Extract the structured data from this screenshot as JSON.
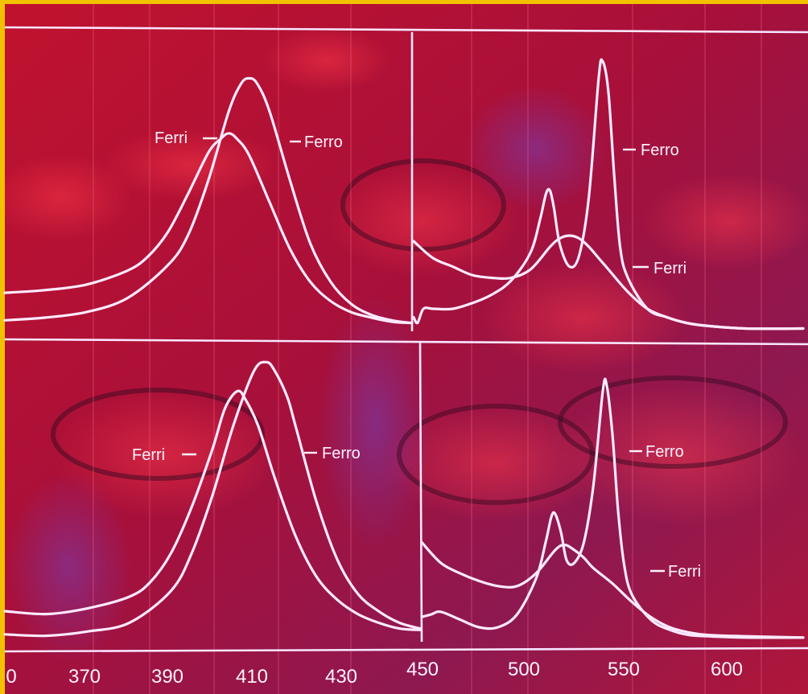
{
  "colors": {
    "border": "#f2c200",
    "background": "#b0102a",
    "curve": "#fbe9ff"
  },
  "chart_data": [
    {
      "type": "line",
      "panel": "top-left",
      "x_unit": "nm",
      "xlim": [
        350,
        450
      ],
      "ylim": [
        0,
        1
      ],
      "series": [
        {
          "name": "Ferri",
          "x": [
            350,
            360,
            370,
            380,
            385,
            390,
            395,
            400,
            403,
            405,
            407,
            410,
            415,
            420,
            425,
            430,
            435,
            440,
            445,
            450
          ],
          "y": [
            0.14,
            0.15,
            0.17,
            0.22,
            0.27,
            0.36,
            0.5,
            0.65,
            0.7,
            0.72,
            0.7,
            0.64,
            0.47,
            0.3,
            0.18,
            0.11,
            0.07,
            0.05,
            0.035,
            0.03
          ]
        },
        {
          "name": "Ferro",
          "x": [
            350,
            360,
            370,
            380,
            390,
            395,
            400,
            405,
            408,
            410,
            412,
            415,
            420,
            425,
            430,
            435,
            440,
            445,
            450
          ],
          "y": [
            0.04,
            0.05,
            0.07,
            0.12,
            0.24,
            0.35,
            0.55,
            0.8,
            0.9,
            0.92,
            0.9,
            0.8,
            0.55,
            0.32,
            0.18,
            0.1,
            0.06,
            0.04,
            0.03
          ]
        }
      ]
    },
    {
      "type": "line",
      "panel": "top-right",
      "x_unit": "nm",
      "xlim": [
        450,
        650
      ],
      "ylim": [
        0,
        1
      ],
      "series": [
        {
          "name": "Ferri",
          "x": [
            450,
            460,
            470,
            480,
            490,
            500,
            510,
            520,
            525,
            530,
            535,
            540,
            545,
            550,
            560,
            570,
            580,
            590,
            600,
            620,
            650
          ],
          "y": [
            0.32,
            0.26,
            0.23,
            0.2,
            0.19,
            0.19,
            0.22,
            0.3,
            0.33,
            0.34,
            0.33,
            0.3,
            0.26,
            0.22,
            0.14,
            0.08,
            0.05,
            0.03,
            0.02,
            0.01,
            0.01
          ]
        },
        {
          "name": "Ferro",
          "x": [
            450,
            452,
            455,
            460,
            470,
            480,
            490,
            500,
            510,
            515,
            518,
            520,
            522,
            525,
            530,
            535,
            540,
            545,
            547,
            550,
            553,
            556,
            560,
            570,
            580,
            590,
            600,
            620,
            650
          ],
          "y": [
            0.05,
            0.03,
            0.08,
            0.08,
            0.08,
            0.1,
            0.13,
            0.18,
            0.28,
            0.4,
            0.49,
            0.5,
            0.44,
            0.31,
            0.23,
            0.27,
            0.48,
            0.9,
            0.96,
            0.85,
            0.55,
            0.3,
            0.19,
            0.08,
            0.05,
            0.03,
            0.02,
            0.01,
            0.01
          ]
        }
      ]
    },
    {
      "type": "line",
      "panel": "bottom-left",
      "x_unit": "nm",
      "xlim": [
        350,
        450
      ],
      "ylim": [
        0,
        1
      ],
      "series": [
        {
          "name": "Ferri",
          "x": [
            350,
            360,
            370,
            380,
            385,
            390,
            395,
            400,
            403,
            406,
            408,
            411,
            415,
            420,
            425,
            430,
            435,
            440,
            445,
            450
          ],
          "y": [
            0.1,
            0.09,
            0.11,
            0.15,
            0.2,
            0.3,
            0.46,
            0.66,
            0.8,
            0.86,
            0.83,
            0.74,
            0.56,
            0.36,
            0.22,
            0.14,
            0.09,
            0.06,
            0.04,
            0.035
          ]
        },
        {
          "name": "Ferro",
          "x": [
            350,
            360,
            370,
            380,
            390,
            395,
            400,
            405,
            410,
            413,
            415,
            418,
            420,
            425,
            430,
            435,
            440,
            445,
            450
          ],
          "y": [
            0.02,
            0.015,
            0.03,
            0.06,
            0.17,
            0.3,
            0.5,
            0.74,
            0.93,
            0.96,
            0.93,
            0.84,
            0.74,
            0.48,
            0.28,
            0.16,
            0.1,
            0.06,
            0.04
          ]
        }
      ]
    },
    {
      "type": "line",
      "panel": "bottom-right",
      "x_unit": "nm",
      "xlim": [
        450,
        650
      ],
      "ylim": [
        0,
        1
      ],
      "series": [
        {
          "name": "Ferri",
          "x": [
            450,
            460,
            470,
            480,
            490,
            500,
            510,
            520,
            525,
            530,
            535,
            540,
            550,
            560,
            570,
            580,
            590,
            600,
            620,
            650
          ],
          "y": [
            0.38,
            0.3,
            0.26,
            0.23,
            0.21,
            0.21,
            0.26,
            0.35,
            0.37,
            0.35,
            0.32,
            0.28,
            0.22,
            0.15,
            0.09,
            0.05,
            0.03,
            0.02,
            0.015,
            0.01
          ]
        },
        {
          "name": "Ferro",
          "x": [
            450,
            455,
            460,
            470,
            480,
            490,
            500,
            510,
            515,
            518,
            520,
            523,
            526,
            530,
            535,
            540,
            545,
            547,
            550,
            553,
            556,
            560,
            570,
            580,
            590,
            600,
            620,
            650
          ],
          "y": [
            0.09,
            0.1,
            0.11,
            0.08,
            0.05,
            0.05,
            0.1,
            0.24,
            0.38,
            0.48,
            0.49,
            0.42,
            0.31,
            0.3,
            0.38,
            0.6,
            0.97,
            0.99,
            0.8,
            0.5,
            0.3,
            0.18,
            0.08,
            0.04,
            0.02,
            0.015,
            0.01,
            0.01
          ]
        }
      ]
    }
  ],
  "x_axis": {
    "left_ticks": [
      "0",
      "370",
      "390",
      "410",
      "430"
    ],
    "right_ticks": [
      "450",
      "500",
      "550",
      "600"
    ]
  }
}
